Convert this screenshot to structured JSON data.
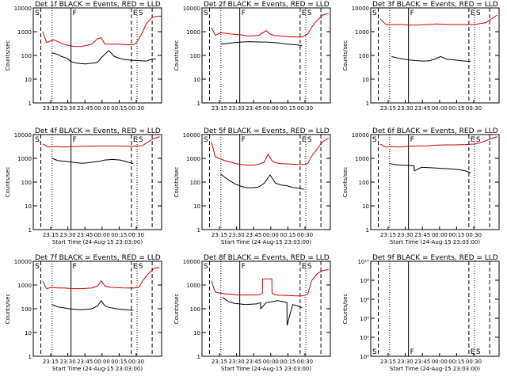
{
  "chart_data": [
    {
      "type": "line",
      "title": "Det 1f BLACK = Events, RED = LLD",
      "xlabel": "",
      "ylabel": "Counts/sec",
      "yscale": "log",
      "ylim": [
        1,
        10000
      ],
      "y_tick_labels": [
        "1",
        "10",
        "100",
        "1000",
        "10000"
      ],
      "x_tick_labels": [
        "23:15",
        "23:30",
        "23:45",
        "00:00",
        "00:15",
        "00:30"
      ],
      "markers": {
        "S": "S",
        "F": "F",
        "E": "E",
        "S2": "S"
      },
      "series": [
        {
          "name": "Events",
          "color": "#000000",
          "x": [
            -10,
            -7,
            -5,
            -2,
            0,
            3,
            5,
            8,
            10,
            14,
            16,
            20,
            23,
            27,
            30,
            33,
            37,
            40,
            43,
            45
          ],
          "y": [
            130,
            110,
            90,
            75,
            55,
            48,
            45,
            44,
            46,
            50,
            80,
            160,
            90,
            70,
            65,
            62,
            60,
            58,
            70,
            70
          ]
        },
        {
          "name": "LLD",
          "color": "#cc0000",
          "x": [
            -15,
            -13,
            -11,
            -9,
            -7,
            -4,
            -1,
            2,
            5,
            8,
            11,
            14,
            16,
            18,
            21,
            24,
            27,
            30,
            32,
            34,
            36,
            38,
            40,
            43,
            46,
            48
          ],
          "y": [
            1000,
            350,
            400,
            450,
            380,
            300,
            260,
            240,
            240,
            260,
            300,
            500,
            560,
            300,
            300,
            300,
            290,
            280,
            280,
            300,
            500,
            1000,
            2200,
            4000,
            4500,
            4500
          ]
        }
      ]
    },
    {
      "type": "line",
      "title": "Det 2f BLACK = Events, RED = LLD",
      "xlabel": "",
      "ylabel": "Counts/sec",
      "yscale": "log",
      "ylim": [
        1,
        10000
      ],
      "y_tick_labels": [
        "1",
        "10",
        "100",
        "1000",
        "10000"
      ],
      "x_tick_labels": [
        "23:15",
        "23:30",
        "23:45",
        "00:00",
        "00:15",
        "00:30"
      ],
      "markers": {
        "S": "S",
        "F": "F",
        "E": "E",
        "S2": "S"
      },
      "series": [
        {
          "name": "Events",
          "color": "#000000",
          "x": [
            -10,
            -5,
            0,
            5,
            10,
            15,
            20,
            25,
            30,
            33
          ],
          "y": [
            300,
            330,
            360,
            380,
            370,
            360,
            340,
            300,
            280,
            260
          ]
        },
        {
          "name": "LLD",
          "color": "#cc0000",
          "x": [
            -15,
            -13,
            -10,
            -5,
            0,
            5,
            10,
            14,
            16,
            18,
            22,
            26,
            30,
            33,
            36,
            38,
            41,
            44,
            47
          ],
          "y": [
            1500,
            700,
            900,
            800,
            750,
            650,
            700,
            1100,
            800,
            700,
            650,
            620,
            600,
            600,
            800,
            1500,
            3000,
            5000,
            6000
          ]
        }
      ]
    },
    {
      "type": "line",
      "title": "Det 3f BLACK = Events, RED = LLD",
      "xlabel": "",
      "ylabel": "Counts/sec",
      "yscale": "log",
      "ylim": [
        1,
        10000
      ],
      "y_tick_labels": [
        "1",
        "10",
        "100",
        "1000",
        "10000"
      ],
      "x_tick_labels": [
        "23:15",
        "23:30",
        "23:45",
        "00:00",
        "00:15",
        "00:30"
      ],
      "markers": {
        "S": "S",
        "F": "F",
        "E": "E",
        "S2": "S"
      },
      "series": [
        {
          "name": "Events",
          "color": "#000000",
          "x": [
            -9,
            -5,
            0,
            5,
            8,
            11,
            14,
            17,
            20,
            24,
            28,
            33
          ],
          "y": [
            90,
            75,
            65,
            60,
            58,
            60,
            70,
            90,
            70,
            65,
            60,
            55
          ]
        },
        {
          "name": "LLD",
          "color": "#cc0000",
          "x": [
            -15,
            -12,
            -8,
            -4,
            0,
            5,
            10,
            15,
            20,
            25,
            30,
            35,
            38,
            41,
            44,
            47
          ],
          "y": [
            3500,
            2000,
            2000,
            2000,
            1900,
            1900,
            2000,
            2100,
            2000,
            2000,
            2000,
            2000,
            2200,
            2400,
            3500,
            5000
          ]
        }
      ]
    },
    {
      "type": "line",
      "title": "Det 4f BLACK = Events, RED = LLD",
      "xlabel": "Start Time (24-Aug-15 23:03:00)",
      "ylabel": "Counts/sec",
      "yscale": "log",
      "ylim": [
        1,
        10000
      ],
      "y_tick_labels": [
        "1",
        "10",
        "100",
        "1000",
        "10000"
      ],
      "x_tick_labels": [
        "23:15",
        "23:30",
        "23:45",
        "00:00",
        "00:15",
        "00:30"
      ],
      "markers": {
        "S": "S",
        "F": "F",
        "E": "E",
        "S2": "S"
      },
      "series": [
        {
          "name": "Events",
          "color": "#000000",
          "x": [
            -10,
            -7,
            -3,
            0,
            3,
            6,
            9,
            12,
            15,
            18,
            22,
            26,
            30,
            33
          ],
          "y": [
            1000,
            800,
            750,
            700,
            650,
            620,
            650,
            700,
            750,
            850,
            900,
            850,
            700,
            600
          ]
        },
        {
          "name": "LLD",
          "color": "#cc0000",
          "x": [
            -15,
            -12,
            -8,
            -4,
            0,
            5,
            10,
            15,
            20,
            25,
            30,
            35,
            38,
            41,
            44,
            47
          ],
          "y": [
            4000,
            3000,
            3100,
            3000,
            3100,
            3200,
            3200,
            3300,
            3300,
            3300,
            3200,
            3300,
            3500,
            5000,
            7000,
            8000
          ]
        }
      ]
    },
    {
      "type": "line",
      "title": "Det 5f BLACK = Events, RED = LLD",
      "xlabel": "Start Time (24-Aug-15 23:03:00)",
      "ylabel": "Counts/sec",
      "yscale": "log",
      "ylim": [
        1,
        10000
      ],
      "y_tick_labels": [
        "1",
        "10",
        "100",
        "1000",
        "10000"
      ],
      "x_tick_labels": [
        "23:15",
        "23:30",
        "23:45",
        "00:00",
        "00:15",
        "00:30"
      ],
      "markers": {
        "S": "S",
        "F": "F",
        "E": "E",
        "S2": "S"
      },
      "series": [
        {
          "name": "Events",
          "color": "#000000",
          "x": [
            -10,
            -8,
            -5,
            -2,
            1,
            4,
            7,
            10,
            13,
            16,
            19,
            22,
            25,
            28,
            31,
            34
          ],
          "y": [
            220,
            160,
            110,
            80,
            65,
            58,
            58,
            62,
            90,
            200,
            90,
            75,
            70,
            60,
            55,
            50
          ]
        },
        {
          "name": "LLD",
          "color": "#cc0000",
          "x": [
            -15,
            -13,
            -11,
            -8,
            -5,
            -2,
            1,
            4,
            7,
            10,
            13,
            15,
            17,
            19,
            22,
            26,
            30,
            34,
            36,
            38,
            41,
            44,
            47
          ],
          "y": [
            5000,
            1200,
            1000,
            800,
            700,
            600,
            550,
            520,
            520,
            560,
            700,
            1500,
            800,
            650,
            600,
            580,
            560,
            550,
            600,
            1200,
            2500,
            5000,
            7000
          ]
        }
      ]
    },
    {
      "type": "line",
      "title": "Det 6f BLACK = Events, RED = LLD",
      "xlabel": "Start Time (24-Aug-15 23:03:00)",
      "ylabel": "Counts/sec",
      "yscale": "log",
      "ylim": [
        1,
        10000
      ],
      "y_tick_labels": [
        "1",
        "10",
        "100",
        "1000",
        "10000"
      ],
      "x_tick_labels": [
        "23:15",
        "23:30",
        "23:45",
        "00:00",
        "00:15",
        "00:30"
      ],
      "markers": {
        "S": "S",
        "F": "F",
        "E": "E",
        "S2": "S"
      },
      "series": [
        {
          "name": "Events",
          "color": "#000000",
          "x": [
            -10,
            -5,
            0,
            3,
            3.1,
            7,
            12,
            17,
            22,
            27,
            30,
            33
          ],
          "y": [
            600,
            520,
            500,
            480,
            300,
            420,
            400,
            380,
            360,
            330,
            300,
            250
          ]
        },
        {
          "name": "LLD",
          "color": "#cc0000",
          "x": [
            -15,
            -12,
            -8,
            -4,
            0,
            5,
            10,
            15,
            20,
            25,
            30,
            35,
            38,
            41,
            44,
            47
          ],
          "y": [
            4000,
            3000,
            3100,
            3000,
            3200,
            3300,
            3400,
            3600,
            3700,
            3700,
            3800,
            4000,
            4500,
            5500,
            7000,
            8000
          ]
        }
      ]
    },
    {
      "type": "line",
      "title": "Det 7f BLACK = Events, RED = LLD",
      "xlabel": "Start Time (24-Aug-15 23:03:00)",
      "ylabel": "Counts/sec",
      "yscale": "log",
      "ylim": [
        1,
        10000
      ],
      "y_tick_labels": [
        "1",
        "10",
        "100",
        "1000",
        "10000"
      ],
      "x_tick_labels": [
        "23:15",
        "23:30",
        "23:45",
        "00:00",
        "00:15",
        "00:30"
      ],
      "markers": {
        "S": "S",
        "F": "F",
        "E": "E",
        "S2": "S"
      },
      "series": [
        {
          "name": "Events",
          "color": "#000000",
          "x": [
            -10,
            -7,
            -4,
            -1,
            2,
            5,
            8,
            11,
            14,
            16,
            18,
            21,
            24,
            27,
            30,
            33
          ],
          "y": [
            150,
            120,
            110,
            100,
            95,
            92,
            95,
            100,
            130,
            220,
            130,
            110,
            100,
            95,
            90,
            85
          ]
        },
        {
          "name": "LLD",
          "color": "#cc0000",
          "x": [
            -15,
            -13,
            -10,
            -7,
            -4,
            -1,
            2,
            5,
            8,
            11,
            14,
            16,
            18,
            21,
            24,
            27,
            30,
            33,
            36,
            38,
            41,
            44,
            47
          ],
          "y": [
            1500,
            700,
            800,
            750,
            750,
            720,
            700,
            700,
            720,
            750,
            900,
            1500,
            900,
            800,
            780,
            760,
            750,
            740,
            800,
            1500,
            3000,
            5000,
            5500
          ]
        }
      ]
    },
    {
      "type": "line",
      "title": "Det 8f BLACK = Events, RED = LLD",
      "xlabel": "Start Time (24-Aug-15 23:03:00)",
      "ylabel": "Counts/sec",
      "yscale": "log",
      "ylim": [
        1,
        10000
      ],
      "y_tick_labels": [
        "1",
        "10",
        "100",
        "1000",
        "10000"
      ],
      "x_tick_labels": [
        "23:15",
        "23:30",
        "23:45",
        "00:00",
        "00:15",
        "00:30"
      ],
      "markers": {
        "S": "S",
        "F": "F",
        "E": "E",
        "S2": "S"
      },
      "series": [
        {
          "name": "Events",
          "color": "#000000",
          "x": [
            -9,
            -6,
            -3,
            0,
            3,
            6,
            9,
            11,
            11.1,
            14,
            17,
            20,
            23,
            25,
            25.1,
            28,
            31,
            33
          ],
          "y": [
            300,
            200,
            170,
            160,
            150,
            155,
            160,
            180,
            100,
            180,
            200,
            220,
            200,
            180,
            20,
            150,
            130,
            110
          ]
        },
        {
          "name": "LLD",
          "color": "#cc0000",
          "x": [
            -15,
            -13,
            -10,
            -7,
            -4,
            -1,
            2,
            5,
            8,
            11,
            12,
            12.1,
            17,
            17.1,
            19,
            22,
            26,
            30,
            33,
            36,
            38,
            41,
            44,
            47
          ],
          "y": [
            1500,
            500,
            450,
            420,
            400,
            380,
            380,
            380,
            380,
            400,
            450,
            1800,
            1800,
            450,
            380,
            370,
            360,
            350,
            350,
            400,
            1500,
            3000,
            4000,
            4500
          ]
        }
      ]
    },
    {
      "type": "line",
      "title": "Det 9f BLACK = Events, RED = LLD",
      "xlabel": "Start Time (24-Aug-15 23:03:00)",
      "ylabel": "Counts/sec",
      "yscale": "log",
      "ylim": [
        1,
        10000000000
      ],
      "y_tick_labels": [
        "10⁰",
        "10²",
        "10⁴",
        "10⁶",
        "10⁸",
        "10¹⁰"
      ],
      "x_tick_labels": [
        "23:15",
        "23:30",
        "23:45",
        "00:00",
        "00:15",
        "00:30"
      ],
      "markers": {
        "S": "S",
        "F": "F",
        "E": "E",
        "S2": "S"
      },
      "series": []
    }
  ]
}
